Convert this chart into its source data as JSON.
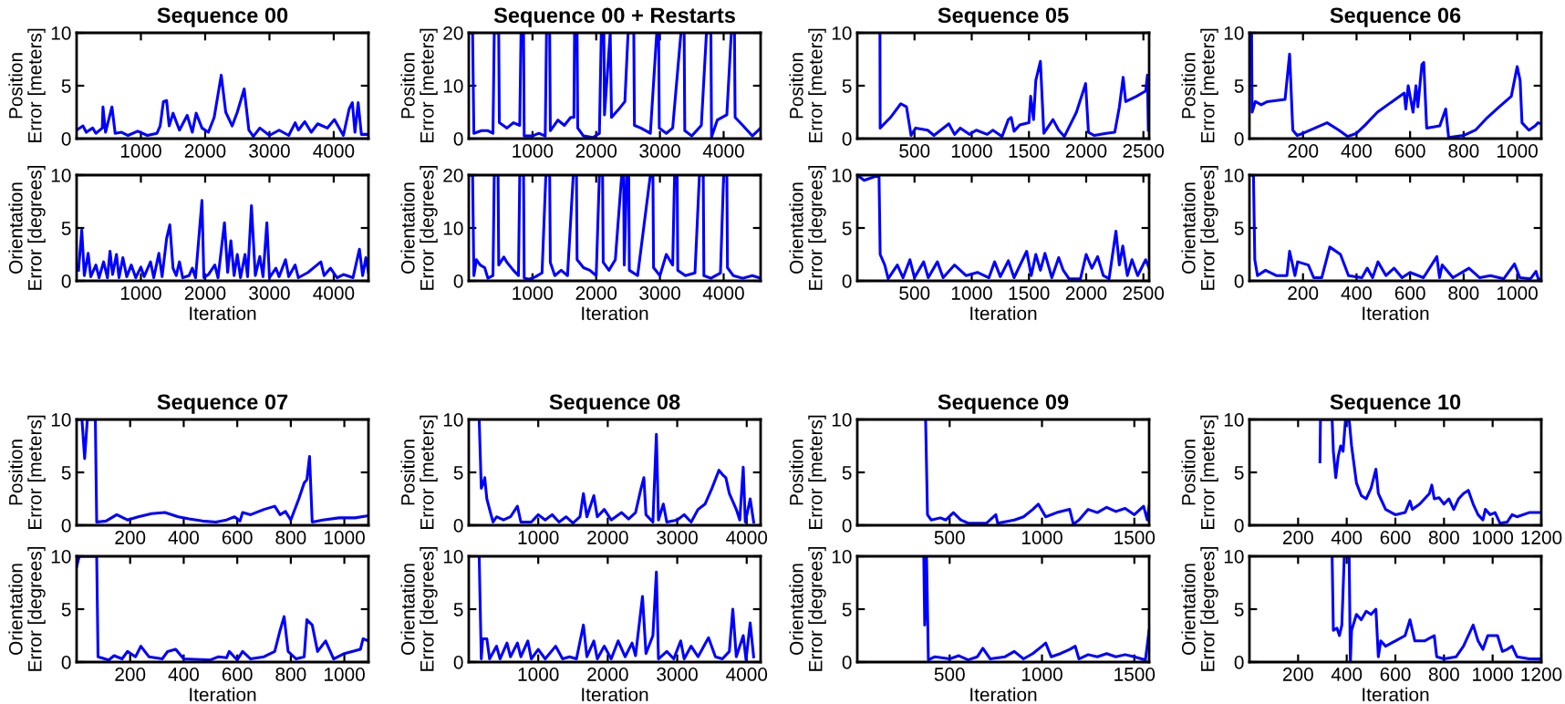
{
  "chart_data": [
    {
      "type": "line",
      "title": "Sequence 00",
      "ylabel": "Position\nError [meters]",
      "xlim": [
        0,
        4540
      ],
      "xticks": [
        1000,
        2000,
        3000,
        4000
      ],
      "ylim": [
        0,
        10
      ],
      "yticks": [
        0,
        5,
        10
      ],
      "grid": false,
      "series": [
        {
          "color": "#0000ff",
          "x": [
            0,
            100,
            150,
            250,
            300,
            400,
            410,
            450,
            550,
            600,
            700,
            800,
            950,
            1100,
            1250,
            1300,
            1350,
            1400,
            1440,
            1500,
            1600,
            1720,
            1800,
            1860,
            1950,
            2050,
            2140,
            2250,
            2320,
            2420,
            2500,
            2607,
            2680,
            2750,
            2850,
            3000,
            3150,
            3300,
            3400,
            3450,
            3550,
            3650,
            3750,
            3900,
            4010,
            4150,
            4240,
            4290,
            4330,
            4380,
            4430,
            4540
          ],
          "values": [
            0.8,
            1.2,
            0.6,
            1.0,
            0.5,
            1.0,
            3.0,
            0.6,
            3.0,
            0.5,
            0.6,
            0.3,
            0.7,
            0.3,
            0.5,
            1.2,
            3.5,
            3.6,
            1.2,
            2.4,
            0.8,
            2.2,
            0.6,
            2.4,
            1.0,
            0.6,
            2.0,
            6.0,
            2.5,
            1.2,
            2.5,
            4.7,
            0.8,
            0.2,
            1.0,
            0.3,
            0.8,
            0.3,
            1.5,
            0.8,
            1.6,
            0.6,
            1.4,
            1.0,
            1.8,
            0.3,
            2.8,
            3.4,
            0.6,
            3.4,
            0.4,
            0.4
          ]
        }
      ]
    },
    {
      "type": "line",
      "title": "Sequence 00 + Restarts",
      "ylabel": "Position\nError [meters]",
      "xlim": [
        0,
        4580
      ],
      "xticks": [
        1000,
        2000,
        3000,
        4000
      ],
      "ylim": [
        0,
        20
      ],
      "yticks": [
        0,
        10,
        20
      ],
      "grid": false,
      "series": [
        {
          "color": "#0000ff",
          "x": [
            0,
            60,
            80,
            200,
            300,
            380,
            400,
            470,
            480,
            600,
            700,
            800,
            820,
            860,
            870,
            1000,
            1100,
            1200,
            1220,
            1270,
            1280,
            1400,
            1500,
            1600,
            1650,
            1660,
            1700,
            1710,
            1800,
            1950,
            2050,
            2080,
            2120,
            2130,
            2220,
            2240,
            2350,
            2450,
            2500,
            2590,
            2600,
            2700,
            2850,
            2950,
            2980,
            2990,
            3100,
            3200,
            3330,
            3380,
            3390,
            3500,
            3650,
            3730,
            3800,
            3810,
            3900,
            4050,
            4120,
            4170,
            4180,
            4300,
            4450,
            4580
          ],
          "values": [
            20,
            20,
            1.0,
            1.5,
            1.5,
            1.0,
            20,
            20,
            3.0,
            2.0,
            3.0,
            2.5,
            20,
            20,
            0.5,
            0.5,
            1.0,
            0.5,
            20,
            20,
            1.5,
            3.5,
            2.5,
            4.0,
            4.0,
            20,
            20,
            2.0,
            0.5,
            0.2,
            1.0,
            20,
            20,
            4.5,
            20,
            4.0,
            5.5,
            7.0,
            20,
            20,
            2.5,
            2.0,
            1.0,
            20,
            20,
            2.0,
            1.0,
            2.0,
            20,
            20,
            1.5,
            0.5,
            2.5,
            20,
            20,
            0.3,
            3.5,
            4.5,
            20,
            20,
            4.0,
            2.5,
            0.5,
            2.0
          ]
        }
      ]
    },
    {
      "type": "line",
      "title": "Sequence 05",
      "ylabel": "Position\nError [meters]",
      "xlim": [
        0,
        2550
      ],
      "xticks": [
        500,
        1000,
        1500,
        2000,
        2500
      ],
      "ylim": [
        0,
        10
      ],
      "yticks": [
        0,
        5,
        10
      ],
      "grid": false,
      "series": [
        {
          "color": "#0000ff",
          "x": [
            198,
            200,
            290,
            380,
            430,
            470,
            510,
            615,
            670,
            800,
            850,
            900,
            980,
            1040,
            1135,
            1185,
            1265,
            1320,
            1345,
            1370,
            1420,
            1500,
            1515,
            1540,
            1560,
            1600,
            1630,
            1710,
            1760,
            1810,
            1915,
            1995,
            2020,
            2070,
            2175,
            2250,
            2290,
            2323,
            2345,
            2440,
            2520,
            2535,
            2543
          ],
          "values": [
            10,
            1.0,
            2.0,
            3.3,
            3.0,
            0.3,
            1.0,
            0.8,
            0.3,
            1.4,
            0.4,
            1.0,
            0.4,
            0.8,
            0.4,
            0.8,
            0.2,
            1.8,
            2.0,
            0.7,
            1.3,
            1.5,
            4.0,
            1.8,
            5.5,
            7.3,
            0.5,
            1.8,
            0.8,
            0.2,
            2.5,
            5.2,
            0.6,
            0.3,
            0.5,
            0.6,
            3.0,
            5.8,
            3.5,
            4.0,
            4.5,
            6.0,
            0.8
          ]
        }
      ]
    },
    {
      "type": "line",
      "title": "Sequence 06",
      "ylabel": "Position\nError [meters]",
      "xlim": [
        0,
        1090
      ],
      "xticks": [
        200,
        400,
        600,
        800,
        1000
      ],
      "ylim": [
        0,
        10
      ],
      "yticks": [
        0,
        5,
        10
      ],
      "grid": false,
      "series": [
        {
          "color": "#0000ff",
          "x": [
            8,
            10,
            22,
            44,
            67,
            133,
            150,
            162,
            178,
            200,
            245,
            290,
            334,
            367,
            400,
            433,
            478,
            533,
            578,
            584,
            593,
            611,
            622,
            629,
            644,
            651,
            662,
            711,
            733,
            744,
            800,
            844,
            889,
            933,
            978,
            1000,
            1011,
            1018,
            1044,
            1067,
            1078,
            1090
          ],
          "values": [
            10,
            2.5,
            3.5,
            3.2,
            3.5,
            3.7,
            8.0,
            0.8,
            0.3,
            0.5,
            1.0,
            1.5,
            0.8,
            0.2,
            0.5,
            1.3,
            2.5,
            3.5,
            4.3,
            2.8,
            5.0,
            2.5,
            5.0,
            3.0,
            7.0,
            7.2,
            1.0,
            1.2,
            2.8,
            0.1,
            0.3,
            0.8,
            2.0,
            3.0,
            4.0,
            6.8,
            5.5,
            1.5,
            0.8,
            1.2,
            1.5,
            1.4
          ]
        }
      ]
    },
    {
      "type": "line",
      "xlabel": "Iteration",
      "ylabel": "Orientation\nError [degrees]",
      "xlim": [
        0,
        4540
      ],
      "xticks": [
        1000,
        2000,
        3000,
        4000
      ],
      "ylim": [
        0,
        10
      ],
      "yticks": [
        0,
        5,
        10
      ],
      "grid": false,
      "series": [
        {
          "color": "#0000ff",
          "x": [
            30,
            80,
            120,
            180,
            220,
            300,
            350,
            420,
            480,
            520,
            560,
            620,
            660,
            720,
            780,
            850,
            920,
            1000,
            1050,
            1150,
            1200,
            1280,
            1330,
            1400,
            1450,
            1500,
            1550,
            1600,
            1650,
            1750,
            1800,
            1850,
            1950,
            1980,
            2050,
            2150,
            2200,
            2300,
            2350,
            2400,
            2450,
            2500,
            2550,
            2620,
            2660,
            2720,
            2780,
            2850,
            2900,
            2960,
            3000,
            3100,
            3150,
            3250,
            3300,
            3400,
            3450,
            3600,
            3700,
            3800,
            3850,
            3950,
            4050,
            4150,
            4300,
            4400,
            4450,
            4500,
            4540
          ],
          "values": [
            1.0,
            4.8,
            0.5,
            2.6,
            0.4,
            1.5,
            0.3,
            1.8,
            0.3,
            2.8,
            0.6,
            2.5,
            0.3,
            2.2,
            0.4,
            1.5,
            0.3,
            1.3,
            0.4,
            1.8,
            0.3,
            2.6,
            0.4,
            4.0,
            5.3,
            1.2,
            0.5,
            1.8,
            0.3,
            0.5,
            1.2,
            0.3,
            7.6,
            0.3,
            0.6,
            1.5,
            0.3,
            5.5,
            0.8,
            3.8,
            0.5,
            2.5,
            0.3,
            2.5,
            0.4,
            7.1,
            0.5,
            2.3,
            0.4,
            5.5,
            0.3,
            1.2,
            0.4,
            2.0,
            0.4,
            1.5,
            0.3,
            0.8,
            1.3,
            1.8,
            0.5,
            1.2,
            0.3,
            0.6,
            0.3,
            3.0,
            0.5,
            2.2,
            0.8
          ]
        }
      ]
    },
    {
      "type": "line",
      "xlabel": "Iteration",
      "ylabel": "Orientation\nError [degrees]",
      "xlim": [
        0,
        4580
      ],
      "xticks": [
        1000,
        2000,
        3000,
        4000
      ],
      "ylim": [
        0,
        20
      ],
      "yticks": [
        0,
        10,
        20
      ],
      "grid": false,
      "series": [
        {
          "color": "#0000ff",
          "x": [
            0,
            60,
            80,
            120,
            180,
            250,
            300,
            380,
            400,
            460,
            470,
            550,
            600,
            700,
            780,
            800,
            860,
            870,
            950,
            1050,
            1150,
            1210,
            1270,
            1280,
            1350,
            1450,
            1550,
            1640,
            1690,
            1700,
            1800,
            1900,
            2000,
            2050,
            2100,
            2110,
            2200,
            2300,
            2400,
            2430,
            2440,
            2480,
            2510,
            2520,
            2650,
            2850,
            2890,
            2900,
            3000,
            3100,
            3200,
            3230,
            3270,
            3280,
            3400,
            3550,
            3620,
            3680,
            3690,
            3800,
            3950,
            4000,
            4050,
            4060,
            4150,
            4300,
            4450,
            4580
          ],
          "values": [
            20,
            20,
            1.0,
            4.0,
            3.0,
            2.5,
            0.5,
            1.0,
            20,
            20,
            3.0,
            4.5,
            3.5,
            2.0,
            1.0,
            20,
            20,
            0.5,
            0.3,
            0.8,
            1.5,
            20,
            20,
            3.5,
            1.0,
            2.0,
            1.0,
            20,
            20,
            4.0,
            2.5,
            2.0,
            1.0,
            20,
            20,
            3.5,
            2.0,
            4.0,
            20,
            20,
            3.0,
            20,
            20,
            2.0,
            1.0,
            20,
            20,
            2.5,
            1.0,
            5.0,
            3.0,
            20,
            20,
            2.0,
            1.0,
            1.5,
            20,
            20,
            1.0,
            0.5,
            1.5,
            20,
            20,
            2.5,
            1.0,
            0.5,
            1.0,
            0.5
          ]
        }
      ]
    },
    {
      "type": "line",
      "xlabel": "Iteration",
      "ylabel": "Orientation\nError [degrees]",
      "xlim": [
        0,
        2550
      ],
      "xticks": [
        500,
        1000,
        1500,
        2000,
        2500
      ],
      "ylim": [
        0,
        10
      ],
      "yticks": [
        0,
        5,
        10
      ],
      "grid": false,
      "series": [
        {
          "color": "#0000ff",
          "x": [
            0,
            60,
            190,
            200,
            240,
            270,
            350,
            400,
            460,
            500,
            580,
            620,
            700,
            750,
            850,
            950,
            1050,
            1150,
            1200,
            1250,
            1320,
            1370,
            1480,
            1520,
            1560,
            1600,
            1640,
            1700,
            1760,
            1800,
            1850,
            1950,
            2000,
            2050,
            2100,
            2150,
            2200,
            2260,
            2290,
            2320,
            2360,
            2400,
            2450,
            2520,
            2550
          ],
          "values": [
            10,
            9.5,
            10,
            2.5,
            1.5,
            0.2,
            1.5,
            0.3,
            2.0,
            0.3,
            1.8,
            0.3,
            1.8,
            0.3,
            1.5,
            0.5,
            0.8,
            0.3,
            1.8,
            0.4,
            1.9,
            0.3,
            2.8,
            0.5,
            2.5,
            1.0,
            2.6,
            0.3,
            2.2,
            1.0,
            0.2,
            0.2,
            2.5,
            1.2,
            2.3,
            0.5,
            0.2,
            4.7,
            1.5,
            3.3,
            0.5,
            2.0,
            0.5,
            2.0,
            1.2
          ]
        }
      ]
    },
    {
      "type": "line",
      "xlabel": "Iteration",
      "ylabel": "Orientation\nError [degrees]",
      "xlim": [
        0,
        1090
      ],
      "xticks": [
        200,
        400,
        600,
        800,
        1000
      ],
      "ylim": [
        0,
        10
      ],
      "yticks": [
        0,
        5,
        10
      ],
      "grid": false,
      "series": [
        {
          "color": "#0000ff",
          "x": [
            0,
            15,
            20,
            30,
            60,
            100,
            140,
            150,
            170,
            180,
            220,
            240,
            270,
            300,
            340,
            370,
            420,
            440,
            460,
            480,
            510,
            540,
            570,
            600,
            650,
            700,
            710,
            720,
            760,
            820,
            860,
            900,
            950,
            990,
            1010,
            1050,
            1070,
            1080,
            1090
          ],
          "values": [
            10,
            10,
            2.0,
            0.5,
            1.0,
            0.5,
            0.5,
            2.8,
            0.5,
            1.8,
            1.5,
            0.3,
            0.3,
            3.2,
            2.5,
            0.5,
            0.3,
            1.2,
            0.3,
            1.8,
            0.5,
            1.2,
            0.3,
            0.8,
            0.3,
            2.3,
            0.3,
            1.5,
            0.3,
            1.2,
            0.3,
            0.5,
            0.2,
            1.6,
            0.3,
            0.2,
            0.9,
            0.1,
            0.2
          ]
        }
      ]
    },
    {
      "type": "line",
      "title": "Sequence 07",
      "ylabel": "Position\nError [meters]",
      "xlim": [
        0,
        1090
      ],
      "xticks": [
        200,
        400,
        600,
        800,
        1000
      ],
      "ylim": [
        0,
        10
      ],
      "yticks": [
        0,
        5,
        10
      ],
      "grid": false,
      "series": [
        {
          "color": "#0000ff",
          "x": [
            0,
            20,
            30,
            40,
            70,
            75,
            110,
            150,
            190,
            230,
            280,
            330,
            380,
            420,
            470,
            520,
            560,
            590,
            610,
            620,
            650,
            700,
            740,
            760,
            780,
            800,
            830,
            850,
            860,
            870,
            880,
            920,
            980,
            1040,
            1090
          ],
          "values": [
            10,
            10,
            6.3,
            10,
            10,
            0.3,
            0.4,
            1.0,
            0.5,
            0.8,
            1.1,
            1.2,
            0.8,
            0.6,
            0.4,
            0.3,
            0.5,
            0.8,
            0.4,
            1.2,
            1.0,
            1.5,
            1.8,
            1.0,
            1.3,
            0.5,
            2.5,
            4.0,
            4.3,
            6.5,
            0.3,
            0.5,
            0.7,
            0.7,
            0.9
          ]
        }
      ]
    },
    {
      "type": "line",
      "title": "Sequence 08",
      "ylabel": "Position\nError [meters]",
      "xlim": [
        0,
        4200
      ],
      "xticks": [
        1000,
        2000,
        3000,
        4000
      ],
      "ylim": [
        0,
        10
      ],
      "yticks": [
        0,
        5,
        10
      ],
      "grid": false,
      "series": [
        {
          "color": "#0000ff",
          "x": [
            150,
            180,
            200,
            230,
            260,
            320,
            350,
            400,
            500,
            600,
            700,
            750,
            900,
            1000,
            1100,
            1200,
            1300,
            1400,
            1500,
            1600,
            1650,
            1700,
            1800,
            1850,
            1950,
            2050,
            2200,
            2300,
            2400,
            2480,
            2520,
            2550,
            2650,
            2700,
            2730,
            2800,
            2850,
            3000,
            3100,
            3200,
            3300,
            3400,
            3500,
            3600,
            3650,
            3700,
            3750,
            3850,
            3900,
            3950,
            3980,
            4050,
            4100
          ],
          "values": [
            10,
            3.5,
            3.8,
            4.5,
            2.5,
            1.0,
            0.3,
            0.8,
            0.5,
            0.8,
            1.8,
            0.3,
            0.3,
            1.0,
            0.5,
            1.0,
            0.3,
            0.8,
            0.2,
            0.8,
            3.0,
            0.8,
            2.8,
            0.8,
            1.5,
            0.5,
            1.2,
            0.6,
            1.2,
            3.5,
            4.5,
            1.0,
            0.3,
            8.6,
            0.5,
            2.0,
            0.3,
            0.5,
            1.0,
            0.3,
            1.5,
            2.0,
            3.5,
            5.2,
            4.8,
            4.5,
            3.0,
            1.5,
            0.5,
            5.5,
            0.3,
            2.5,
            0.3
          ]
        }
      ]
    },
    {
      "type": "line",
      "title": "Sequence 09",
      "ylabel": "Position\nError [meters]",
      "xlim": [
        0,
        1580
      ],
      "xticks": [
        500,
        1000,
        1500
      ],
      "ylim": [
        0,
        10
      ],
      "yticks": [
        0,
        5,
        10
      ],
      "grid": false,
      "series": [
        {
          "color": "#0000ff",
          "x": [
            370,
            380,
            400,
            450,
            480,
            520,
            560,
            600,
            700,
            750,
            760,
            850,
            900,
            950,
            980,
            1020,
            1080,
            1150,
            1170,
            1200,
            1250,
            1300,
            1350,
            1400,
            1450,
            1500,
            1550,
            1570,
            1580
          ],
          "values": [
            10,
            1.0,
            0.5,
            0.7,
            0.5,
            1.2,
            0.5,
            0.2,
            0.2,
            1.0,
            0.2,
            0.5,
            0.8,
            1.5,
            2.0,
            0.8,
            1.2,
            1.5,
            0.1,
            0.5,
            1.5,
            1.2,
            1.7,
            1.3,
            1.6,
            1.0,
            1.8,
            0.5,
            1.8
          ]
        }
      ]
    },
    {
      "type": "line",
      "title": "Sequence 10",
      "ylabel": "Position\nError [meters]",
      "xlim": [
        0,
        1200
      ],
      "xticks": [
        200,
        400,
        600,
        800,
        1000,
        1200
      ],
      "ylim": [
        0,
        10
      ],
      "yticks": [
        0,
        5,
        10
      ],
      "grid": false,
      "series": [
        {
          "color": "#0000ff",
          "x": [
            290,
            292,
            340,
            345,
            355,
            365,
            375,
            385,
            395,
            410,
            420,
            440,
            460,
            480,
            500,
            520,
            530,
            540,
            560,
            600,
            640,
            660,
            670,
            700,
            740,
            750,
            760,
            780,
            800,
            820,
            840,
            860,
            880,
            900,
            920,
            940,
            960,
            970,
            990,
            1010,
            1030,
            1060,
            1080,
            1100,
            1150,
            1200
          ],
          "values": [
            6.0,
            10,
            10,
            7.0,
            4.5,
            6.5,
            7.5,
            7.0,
            10,
            10,
            7.5,
            4.0,
            2.8,
            2.5,
            3.5,
            5.3,
            3.0,
            2.5,
            1.5,
            1.0,
            1.2,
            2.3,
            1.5,
            2.0,
            3.0,
            3.8,
            2.5,
            2.6,
            2.0,
            2.5,
            1.5,
            2.5,
            3.0,
            3.3,
            2.0,
            1.0,
            0.5,
            1.5,
            1.0,
            1.2,
            0.2,
            0.3,
            1.0,
            0.8,
            1.2,
            1.2
          ]
        }
      ]
    },
    {
      "type": "line",
      "xlabel": "Iteration",
      "ylabel": "Orientation\nError [degrees]",
      "xlim": [
        0,
        1090
      ],
      "xticks": [
        200,
        400,
        600,
        800,
        1000
      ],
      "ylim": [
        0,
        10
      ],
      "yticks": [
        0,
        5,
        10
      ],
      "grid": false,
      "series": [
        {
          "color": "#0000ff",
          "x": [
            0,
            10,
            75,
            80,
            120,
            140,
            170,
            190,
            220,
            240,
            270,
            320,
            340,
            370,
            400,
            500,
            530,
            560,
            570,
            600,
            620,
            650,
            700,
            740,
            760,
            775,
            790,
            820,
            850,
            860,
            880,
            900,
            930,
            960,
            1000,
            1060,
            1070,
            1090
          ],
          "values": [
            9.0,
            10,
            10,
            0.5,
            0.2,
            0.6,
            0.3,
            1.0,
            0.5,
            1.5,
            0.5,
            0.3,
            1.0,
            1.2,
            0.3,
            0.2,
            0.5,
            0.4,
            1.0,
            0.2,
            1.0,
            0.3,
            0.5,
            1.0,
            3.0,
            4.3,
            1.0,
            0.3,
            0.5,
            4.0,
            3.5,
            1.0,
            2.0,
            0.3,
            0.8,
            1.2,
            2.2,
            2.0
          ]
        }
      ]
    },
    {
      "type": "line",
      "xlabel": "Iteration",
      "ylabel": "Orientation\nError [degrees]",
      "xlim": [
        0,
        4200
      ],
      "xticks": [
        1000,
        2000,
        3000,
        4000
      ],
      "ylim": [
        0,
        10
      ],
      "yticks": [
        0,
        5,
        10
      ],
      "grid": false,
      "series": [
        {
          "color": "#0000ff",
          "x": [
            150,
            180,
            200,
            260,
            300,
            400,
            450,
            550,
            600,
            700,
            750,
            850,
            900,
            1000,
            1100,
            1250,
            1350,
            1450,
            1550,
            1650,
            1700,
            1800,
            1850,
            1950,
            2050,
            2150,
            2250,
            2350,
            2400,
            2500,
            2550,
            2650,
            2700,
            2730,
            2850,
            2950,
            3050,
            3100,
            3200,
            3300,
            3450,
            3550,
            3650,
            3750,
            3800,
            3850,
            3950,
            3990,
            4050,
            4100
          ],
          "values": [
            10,
            0.3,
            2.2,
            2.2,
            0.3,
            1.5,
            0.3,
            1.8,
            0.5,
            1.8,
            0.5,
            2.0,
            0.3,
            1.2,
            0.3,
            1.5,
            0.3,
            0.5,
            0.3,
            3.5,
            0.5,
            2.0,
            0.3,
            1.5,
            0.3,
            2.0,
            0.5,
            1.8,
            0.6,
            6.2,
            0.8,
            2.5,
            8.5,
            0.3,
            1.0,
            0.3,
            2.0,
            0.3,
            1.5,
            0.5,
            2.3,
            0.5,
            0.3,
            1.0,
            5.0,
            0.5,
            2.5,
            0.2,
            3.7,
            0.5
          ]
        }
      ]
    },
    {
      "type": "line",
      "xlabel": "Iteration",
      "ylabel": "Orientation\nError [degrees]",
      "xlim": [
        0,
        1580
      ],
      "xticks": [
        500,
        1000,
        1500
      ],
      "ylim": [
        0,
        10
      ],
      "yticks": [
        0,
        5,
        10
      ],
      "grid": false,
      "series": [
        {
          "color": "#0000ff",
          "x": [
            360,
            365,
            375,
            385,
            420,
            500,
            550,
            600,
            650,
            680,
            720,
            800,
            850,
            900,
            950,
            1000,
            1020,
            1050,
            1100,
            1150,
            1180,
            1200,
            1250,
            1300,
            1350,
            1400,
            1450,
            1500,
            1560,
            1580
          ],
          "values": [
            10,
            3.5,
            10,
            0.2,
            0.5,
            0.3,
            0.6,
            0.2,
            0.5,
            1.3,
            0.3,
            0.5,
            1.0,
            0.3,
            0.8,
            1.5,
            1.8,
            0.5,
            0.8,
            1.2,
            1.5,
            0.3,
            0.7,
            0.5,
            0.8,
            0.5,
            0.7,
            0.5,
            0.2,
            3.0
          ]
        }
      ]
    },
    {
      "type": "line",
      "xlabel": "Iteration",
      "ylabel": "Orientation\nError [degrees]",
      "xlim": [
        0,
        1200
      ],
      "xticks": [
        200,
        400,
        600,
        800,
        1000,
        1200
      ],
      "ylim": [
        0,
        10
      ],
      "yticks": [
        0,
        5,
        10
      ],
      "grid": false,
      "series": [
        {
          "color": "#0000ff",
          "x": [
            340,
            345,
            360,
            370,
            380,
            390,
            410,
            415,
            420,
            440,
            460,
            480,
            500,
            520,
            530,
            540,
            560,
            600,
            640,
            660,
            680,
            720,
            760,
            770,
            800,
            850,
            880,
            920,
            940,
            960,
            980,
            1020,
            1040,
            1060,
            1080,
            1100,
            1150,
            1200
          ],
          "values": [
            10,
            3.0,
            3.2,
            2.5,
            3.5,
            10,
            10,
            0,
            3.0,
            4.5,
            4.0,
            4.8,
            4.5,
            5.0,
            0.5,
            2.0,
            1.5,
            2.0,
            2.5,
            4.0,
            2.0,
            2.0,
            2.5,
            0.5,
            0.3,
            0.5,
            1.5,
            3.5,
            2.0,
            1.2,
            2.5,
            2.5,
            1.0,
            1.2,
            1.5,
            0.5,
            0.3,
            0.3
          ]
        }
      ]
    }
  ]
}
